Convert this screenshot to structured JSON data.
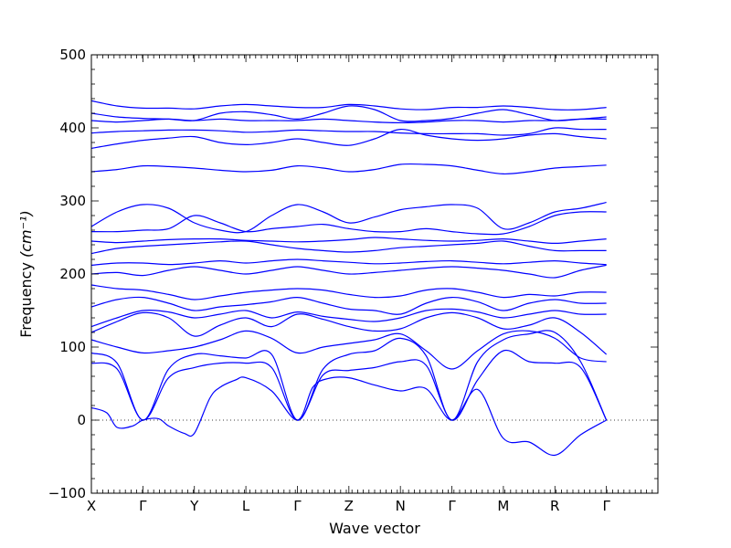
{
  "chart_data": {
    "type": "line",
    "title": "",
    "xlabel": "Wave vector",
    "ylabel": "Frequency",
    "ylabel_unit": "(cm⁻¹)",
    "ylim": [
      -100,
      500
    ],
    "yticks": [
      -100,
      0,
      100,
      200,
      300,
      400,
      500
    ],
    "x_range": [
      0,
      11
    ],
    "high_symmetry_points": [
      {
        "label": "X",
        "x": 0
      },
      {
        "label": "Γ",
        "x": 1
      },
      {
        "label": "Y",
        "x": 2
      },
      {
        "label": "L",
        "x": 3
      },
      {
        "label": "Γ",
        "x": 4
      },
      {
        "label": "Z",
        "x": 5
      },
      {
        "label": "N",
        "x": 6
      },
      {
        "label": "Γ",
        "x": 7
      },
      {
        "label": "M",
        "x": 8
      },
      {
        "label": "R",
        "x": 9
      },
      {
        "label": "Γ",
        "x": 10
      }
    ],
    "zero_reference_line": 0,
    "line_color": "#0000ff",
    "series": [
      {
        "x": [
          0,
          0.3,
          0.5,
          0.8,
          1.0,
          1.3,
          1.5,
          1.8,
          2.0,
          2.3,
          2.5,
          2.8,
          3.0,
          3.5,
          4.0,
          4.3,
          4.6,
          5.0,
          5.5,
          6.0,
          6.5,
          7.0,
          7.5,
          8.0,
          8.5,
          9.0,
          9.5,
          10.0
        ],
        "y": [
          17,
          10,
          -10,
          -8,
          0,
          2,
          -8,
          -18,
          -18,
          30,
          45,
          55,
          58,
          40,
          0,
          45,
          57,
          58,
          48,
          40,
          43,
          0,
          42,
          -25,
          -30,
          -48,
          -20,
          0
        ]
      },
      {
        "x": [
          0,
          0.5,
          1.0,
          1.5,
          2.0,
          2.5,
          3.0,
          3.5,
          4.0,
          4.5,
          5.0,
          5.5,
          6.0,
          6.5,
          7.0,
          7.5,
          8.0,
          8.5,
          9.0,
          9.5,
          10.0
        ],
        "y": [
          78,
          70,
          0,
          58,
          72,
          78,
          78,
          72,
          0,
          62,
          68,
          72,
          80,
          75,
          0,
          55,
          95,
          80,
          78,
          72,
          0
        ]
      },
      {
        "x": [
          0,
          0.5,
          1.0,
          1.5,
          2.0,
          2.5,
          3.0,
          3.5,
          4.0,
          4.5,
          5.0,
          5.5,
          6.0,
          6.5,
          7.0,
          7.5,
          8.0,
          8.5,
          9.0,
          9.5,
          10.0
        ],
        "y": [
          92,
          78,
          0,
          70,
          90,
          88,
          85,
          90,
          0,
          70,
          90,
          95,
          112,
          88,
          0,
          80,
          110,
          118,
          120,
          80,
          0
        ]
      },
      {
        "x": [
          0,
          0.5,
          1.0,
          1.5,
          2.0,
          2.5,
          3.0,
          3.5,
          4.0,
          4.5,
          5.0,
          5.5,
          6.0,
          6.5,
          7.0,
          7.5,
          8.0,
          8.5,
          9.0,
          9.5,
          10.0
        ],
        "y": [
          110,
          100,
          92,
          95,
          100,
          110,
          122,
          112,
          92,
          100,
          105,
          110,
          118,
          95,
          70,
          95,
          118,
          122,
          112,
          85,
          80
        ]
      },
      {
        "x": [
          0,
          0.5,
          1.0,
          1.5,
          2.0,
          2.5,
          3.0,
          3.5,
          4.0,
          4.5,
          5.0,
          5.5,
          6.0,
          6.5,
          7.0,
          7.5,
          8.0,
          8.5,
          9.0,
          9.5,
          10.0
        ],
        "y": [
          120,
          135,
          147,
          140,
          115,
          130,
          140,
          128,
          145,
          138,
          128,
          122,
          125,
          140,
          147,
          140,
          125,
          130,
          140,
          120,
          90
        ]
      },
      {
        "x": [
          0,
          0.5,
          1.0,
          1.5,
          2.0,
          2.5,
          3.0,
          3.5,
          4.0,
          4.5,
          5.0,
          5.5,
          6.0,
          6.5,
          7.0,
          7.5,
          8.0,
          8.5,
          9.0,
          9.5,
          10.0
        ],
        "y": [
          128,
          140,
          150,
          148,
          140,
          145,
          150,
          140,
          148,
          142,
          138,
          135,
          140,
          150,
          152,
          148,
          140,
          145,
          150,
          145,
          145
        ]
      },
      {
        "x": [
          0,
          0.5,
          1.0,
          1.5,
          2.0,
          2.5,
          3.0,
          3.5,
          4.0,
          4.5,
          5.0,
          5.5,
          6.0,
          6.5,
          7.0,
          7.5,
          8.0,
          8.5,
          9.0,
          9.5,
          10.0
        ],
        "y": [
          155,
          165,
          168,
          160,
          150,
          155,
          158,
          162,
          168,
          160,
          152,
          150,
          145,
          160,
          168,
          162,
          150,
          160,
          165,
          160,
          160
        ]
      },
      {
        "x": [
          0,
          0.5,
          1.0,
          1.5,
          2.0,
          2.5,
          3.0,
          3.5,
          4.0,
          4.5,
          5.0,
          5.5,
          6.0,
          6.5,
          7.0,
          7.5,
          8.0,
          8.5,
          9.0,
          9.5,
          10.0
        ],
        "y": [
          185,
          180,
          178,
          172,
          165,
          170,
          175,
          178,
          180,
          178,
          172,
          168,
          170,
          178,
          180,
          175,
          168,
          172,
          170,
          175,
          175
        ]
      },
      {
        "x": [
          0,
          0.5,
          1.0,
          1.5,
          2.0,
          2.5,
          3.0,
          3.5,
          4.0,
          4.5,
          5.0,
          5.5,
          6.0,
          6.5,
          7.0,
          7.5,
          8.0,
          8.5,
          9.0,
          9.5,
          10.0
        ],
        "y": [
          200,
          202,
          198,
          205,
          210,
          205,
          200,
          205,
          210,
          205,
          200,
          202,
          205,
          208,
          210,
          208,
          205,
          200,
          195,
          205,
          212
        ]
      },
      {
        "x": [
          0,
          0.5,
          1.0,
          1.5,
          2.0,
          2.5,
          3.0,
          3.5,
          4.0,
          4.5,
          5.0,
          5.5,
          6.0,
          6.5,
          7.0,
          7.5,
          8.0,
          8.5,
          9.0,
          9.5,
          10.0
        ],
        "y": [
          212,
          215,
          215,
          213,
          215,
          218,
          215,
          218,
          220,
          218,
          216,
          214,
          215,
          217,
          218,
          216,
          214,
          216,
          218,
          215,
          213
        ]
      },
      {
        "x": [
          0,
          0.5,
          1.0,
          1.5,
          2.0,
          2.5,
          3.0,
          3.5,
          4.0,
          4.5,
          5.0,
          5.5,
          6.0,
          6.5,
          7.0,
          7.5,
          8.0,
          8.5,
          9.0,
          9.5,
          10.0
        ],
        "y": [
          228,
          235,
          238,
          240,
          242,
          244,
          245,
          240,
          235,
          232,
          230,
          232,
          236,
          238,
          240,
          242,
          245,
          238,
          232,
          232,
          232
        ]
      },
      {
        "x": [
          0,
          0.5,
          1.0,
          1.5,
          2.0,
          2.5,
          3.0,
          3.5,
          4.0,
          4.5,
          5.0,
          5.5,
          6.0,
          6.5,
          7.0,
          7.5,
          8.0,
          8.5,
          9.0,
          9.5,
          10.0
        ],
        "y": [
          245,
          243,
          245,
          247,
          248,
          248,
          246,
          245,
          244,
          245,
          247,
          250,
          248,
          246,
          245,
          246,
          248,
          245,
          242,
          245,
          248
        ]
      },
      {
        "x": [
          0,
          0.5,
          1.0,
          1.5,
          2.0,
          2.5,
          3.0,
          3.5,
          4.0,
          4.5,
          5.0,
          5.5,
          6.0,
          6.5,
          7.0,
          7.5,
          8.0,
          8.5,
          9.0,
          9.5,
          10.0
        ],
        "y": [
          258,
          258,
          260,
          262,
          280,
          270,
          258,
          262,
          265,
          268,
          262,
          258,
          258,
          262,
          258,
          255,
          255,
          265,
          280,
          285,
          285
        ]
      },
      {
        "x": [
          0,
          0.5,
          1.0,
          1.5,
          2.0,
          2.5,
          3.0,
          3.5,
          4.0,
          4.5,
          5.0,
          5.5,
          6.0,
          6.5,
          7.0,
          7.5,
          8.0,
          8.5,
          9.0,
          9.5,
          10.0
        ],
        "y": [
          265,
          285,
          295,
          290,
          270,
          260,
          258,
          280,
          295,
          285,
          270,
          278,
          288,
          292,
          295,
          290,
          262,
          270,
          285,
          290,
          298
        ]
      },
      {
        "x": [
          0,
          0.5,
          1.0,
          1.5,
          2.0,
          2.5,
          3.0,
          3.5,
          4.0,
          4.5,
          5.0,
          5.5,
          6.0,
          6.5,
          7.0,
          7.5,
          8.0,
          8.5,
          9.0,
          9.5,
          10.0
        ],
        "y": [
          340,
          343,
          348,
          347,
          345,
          342,
          340,
          342,
          348,
          345,
          340,
          343,
          350,
          350,
          348,
          342,
          337,
          340,
          345,
          347,
          349
        ]
      },
      {
        "x": [
          0,
          0.5,
          1.0,
          1.5,
          2.0,
          2.5,
          3.0,
          3.5,
          4.0,
          4.5,
          5.0,
          5.5,
          6.0,
          6.5,
          7.0,
          7.5,
          8.0,
          8.5,
          9.0,
          9.5,
          10.0
        ],
        "y": [
          372,
          378,
          383,
          386,
          388,
          380,
          377,
          380,
          385,
          380,
          376,
          385,
          398,
          390,
          385,
          383,
          385,
          390,
          392,
          388,
          385
        ]
      },
      {
        "x": [
          0,
          0.5,
          1.0,
          1.5,
          2.0,
          2.5,
          3.0,
          3.5,
          4.0,
          4.5,
          5.0,
          5.5,
          6.0,
          6.5,
          7.0,
          7.5,
          8.0,
          8.5,
          9.0,
          9.5,
          10.0
        ],
        "y": [
          393,
          395,
          396,
          397,
          397,
          396,
          394,
          395,
          397,
          396,
          395,
          395,
          393,
          392,
          392,
          392,
          390,
          392,
          400,
          398,
          398
        ]
      },
      {
        "x": [
          0,
          0.5,
          1.0,
          1.5,
          2.0,
          2.5,
          3.0,
          3.5,
          4.0,
          4.5,
          5.0,
          5.5,
          6.0,
          6.5,
          7.0,
          7.5,
          8.0,
          8.5,
          9.0,
          9.5,
          10.0
        ],
        "y": [
          410,
          408,
          410,
          412,
          410,
          412,
          410,
          410,
          410,
          412,
          410,
          408,
          407,
          408,
          410,
          410,
          408,
          410,
          410,
          412,
          412
        ]
      },
      {
        "x": [
          0,
          0.5,
          1.0,
          1.5,
          2.0,
          2.5,
          3.0,
          3.5,
          4.0,
          4.5,
          5.0,
          5.5,
          6.0,
          6.5,
          7.0,
          7.5,
          8.0,
          8.5,
          9.0,
          9.5,
          10.0
        ],
        "y": [
          420,
          415,
          413,
          412,
          410,
          420,
          422,
          418,
          412,
          420,
          430,
          425,
          410,
          410,
          413,
          420,
          425,
          418,
          410,
          412,
          415
        ]
      },
      {
        "x": [
          0,
          0.5,
          1.0,
          1.5,
          2.0,
          2.5,
          3.0,
          3.5,
          4.0,
          4.5,
          5.0,
          5.5,
          6.0,
          6.5,
          7.0,
          7.5,
          8.0,
          8.5,
          9.0,
          9.5,
          10.0
        ],
        "y": [
          437,
          430,
          427,
          427,
          426,
          430,
          432,
          430,
          428,
          428,
          432,
          430,
          426,
          425,
          428,
          428,
          430,
          428,
          425,
          425,
          428
        ]
      }
    ]
  }
}
